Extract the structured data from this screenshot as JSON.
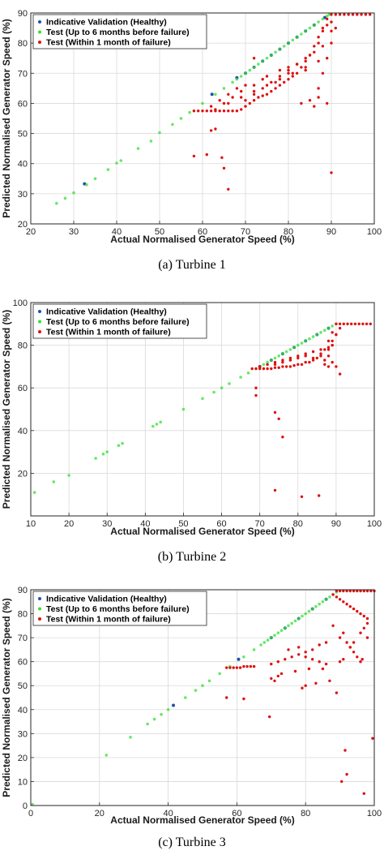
{
  "chart_data": [
    {
      "type": "scatter",
      "xlabel": "Actual Normalised Generator Speed (%)",
      "ylabel": "Predicted Normalised Generator Speed (%)",
      "xlim": [
        20,
        100
      ],
      "ylim": [
        20,
        90
      ],
      "xticks": [
        "20",
        "30",
        "40",
        "50",
        "60",
        "70",
        "80",
        "90",
        "100"
      ],
      "yticks": [
        "20",
        "30",
        "40",
        "50",
        "60",
        "70",
        "80",
        "90"
      ],
      "grid": true,
      "legend_position": "top-left",
      "legend": [
        "Indicative Validation (Healthy)",
        "Test (Up to 6 months before failure)",
        "Test (Within 1 month of failure)"
      ],
      "colors": {
        "validation": "#1f4fb0",
        "test6": "#33e033",
        "test1": "#e01010"
      },
      "series": [
        {
          "name": "Indicative Validation (Healthy)",
          "x": [
            32.5,
            62.2,
            68,
            70,
            72,
            74,
            76,
            78,
            80,
            82,
            84,
            86,
            88.5
          ],
          "y": [
            33.3,
            63,
            68.5,
            70,
            72,
            74,
            76,
            78,
            80,
            82,
            84,
            86,
            88.5
          ]
        },
        {
          "name": "Test (Up to 6 months before failure)",
          "x": [
            26,
            28,
            30,
            33,
            35,
            38,
            40,
            41,
            45,
            48,
            50,
            53,
            55,
            57,
            60,
            63,
            65,
            67,
            68,
            69,
            70,
            71,
            72,
            73,
            74,
            75,
            76,
            77,
            78,
            79,
            80,
            81,
            82,
            83,
            84,
            85,
            86,
            87,
            88,
            89,
            89.5
          ],
          "y": [
            26.8,
            28.5,
            30.3,
            33,
            35,
            38,
            40.2,
            41,
            45,
            47.5,
            50.3,
            53,
            55,
            57,
            60,
            63,
            65,
            67,
            68,
            69,
            70,
            71,
            72,
            73,
            74,
            75,
            76,
            77,
            78,
            79,
            80,
            81,
            82,
            83,
            84,
            85,
            86,
            87,
            88,
            89,
            89.5
          ]
        },
        {
          "name": "Test (Within 1 month of failure)",
          "x": [
            58,
            59,
            60,
            61,
            62,
            63,
            64,
            65,
            66,
            67,
            68,
            69,
            70,
            71,
            72,
            73,
            74,
            75,
            76,
            77,
            78,
            79,
            80,
            81,
            82,
            83,
            84,
            85,
            86,
            87,
            88,
            89,
            90,
            91,
            92,
            93,
            94,
            95,
            96,
            97,
            98,
            99,
            65,
            67,
            69,
            70,
            72,
            74,
            75,
            77,
            78,
            80,
            82,
            84,
            85,
            87,
            88,
            89,
            90,
            62,
            64,
            66,
            68,
            70,
            72,
            74,
            76,
            78,
            80,
            82,
            84,
            86,
            88,
            90,
            63,
            66,
            69,
            72,
            75,
            78,
            81,
            84,
            87,
            86,
            87,
            88,
            89,
            90,
            91,
            89,
            87,
            85,
            83,
            58,
            61,
            63,
            64.5,
            65,
            66,
            90,
            62,
            80,
            72
          ],
          "y": [
            57.5,
            57.5,
            57.5,
            57.5,
            57.5,
            57.5,
            57.5,
            57.5,
            57.5,
            57.5,
            57.5,
            58,
            59,
            60,
            61,
            62,
            62.5,
            63,
            64,
            65,
            66,
            67,
            68,
            69,
            70,
            72,
            74,
            76,
            79,
            82,
            85,
            88,
            89.5,
            89.5,
            89.5,
            89.5,
            89.5,
            89.5,
            89.5,
            89.5,
            89.5,
            89.5,
            60,
            62,
            64,
            66,
            66,
            68,
            69,
            67,
            71,
            70,
            73,
            71,
            76,
            80,
            84,
            86,
            87,
            59,
            61,
            63,
            65,
            61,
            63,
            65,
            67,
            69,
            71,
            73,
            75,
            77,
            79,
            84,
            58,
            60,
            62,
            64,
            66,
            68,
            70,
            72,
            74,
            59,
            65,
            70,
            75,
            80,
            85,
            60,
            62,
            61,
            60,
            42.5,
            43,
            51.5,
            42,
            38.5,
            31.5,
            37,
            51,
            72,
            75
          ]
        }
      ]
    },
    {
      "type": "scatter",
      "xlabel": "Actual Normalised Generator Speed (%)",
      "ylabel": "Predicted Normalised Generator Speed (%)",
      "xlim": [
        10,
        100
      ],
      "ylim": [
        0,
        100
      ],
      "xticks": [
        "10",
        "20",
        "30",
        "40",
        "50",
        "60",
        "70",
        "80",
        "90",
        "100"
      ],
      "yticks": [
        "20",
        "40",
        "60",
        "80",
        "100"
      ],
      "grid": true,
      "legend_position": "top-left",
      "legend": [
        "Indicative Validation (Healthy)",
        "Test (Up to 6 months before failure)",
        "Test (Within 1 month of failure)"
      ],
      "colors": {
        "validation": "#1f4fb0",
        "test6": "#33e033",
        "test1": "#e01010"
      },
      "series": [
        {
          "name": "Indicative Validation (Healthy)",
          "x": [
            70,
            73,
            76,
            79,
            82,
            85,
            88
          ],
          "y": [
            70,
            73,
            76,
            79,
            82,
            85,
            88
          ]
        },
        {
          "name": "Test (Up to 6 months before failure)",
          "x": [
            11,
            16,
            20,
            27,
            29,
            30,
            33,
            34,
            42,
            43,
            44,
            50,
            55,
            58,
            60,
            62,
            65,
            67,
            69,
            70,
            71,
            72,
            73,
            74,
            75,
            76,
            77,
            78,
            79,
            80,
            81,
            82,
            83,
            84,
            85,
            86,
            87,
            88,
            89,
            90
          ],
          "y": [
            11,
            16,
            19,
            27,
            29,
            30,
            33,
            34,
            42,
            43,
            44,
            50,
            55,
            58,
            60,
            62,
            65,
            67,
            69,
            70,
            71,
            72,
            73,
            74,
            75,
            76,
            77,
            78,
            79,
            80,
            81,
            82,
            83,
            84,
            85,
            86,
            87,
            88,
            89,
            90
          ]
        },
        {
          "name": "Test (Within 1 month of failure)",
          "x": [
            68,
            69,
            70,
            71,
            72,
            73,
            74,
            75,
            76,
            77,
            78,
            79,
            80,
            81,
            82,
            83,
            84,
            85,
            86,
            87,
            88,
            89,
            90,
            91,
            92,
            93,
            94,
            95,
            96,
            97,
            98,
            99,
            70,
            72,
            74,
            76,
            78,
            80,
            82,
            84,
            86,
            88,
            89,
            90,
            74,
            76,
            78,
            80,
            82,
            84,
            86,
            88,
            89,
            87,
            88,
            89,
            90,
            91,
            90,
            89,
            87,
            69,
            69,
            74,
            75,
            76,
            74,
            81,
            85.5,
            91,
            88
          ],
          "y": [
            69,
            69,
            69,
            69,
            69,
            69,
            69.5,
            69.5,
            70,
            70,
            70,
            70.5,
            71,
            71,
            72,
            72,
            73,
            74,
            75,
            78,
            82,
            86,
            90,
            90,
            90,
            90,
            90,
            90,
            90,
            90,
            90,
            90,
            70,
            71,
            72,
            72,
            73,
            74,
            75,
            74,
            76,
            78,
            80,
            85,
            71,
            73,
            74,
            75,
            76,
            77,
            78,
            79,
            82,
            71,
            75,
            80,
            85,
            88,
            70,
            72,
            73,
            60,
            56.5,
            48.5,
            45.5,
            37,
            12,
            9,
            9.5,
            66.5,
            70
          ]
        }
      ]
    },
    {
      "type": "scatter",
      "xlabel": "Actual Normalised Generator Speed (%)",
      "ylabel": "Predicted Normalised Generator Speed (%)",
      "xlim": [
        0,
        100
      ],
      "ylim": [
        0,
        90
      ],
      "xticks": [
        "0",
        "20",
        "40",
        "60",
        "80",
        "100"
      ],
      "yticks": [
        "0",
        "10",
        "20",
        "30",
        "40",
        "50",
        "60",
        "70",
        "80",
        "90"
      ],
      "grid": true,
      "legend_position": "top-left",
      "legend": [
        "Indicative Validation (Healthy)",
        "Test (Up to 6 months before failure)",
        "Test (Within 1 month of failure)"
      ],
      "colors": {
        "validation": "#1f4fb0",
        "test6": "#33e033",
        "test1": "#e01010"
      },
      "series": [
        {
          "name": "Indicative Validation (Healthy)",
          "x": [
            41.5,
            60.5,
            70,
            74,
            78,
            82,
            86
          ],
          "y": [
            41.8,
            61,
            70,
            74,
            78,
            82,
            86
          ]
        },
        {
          "name": "Test (Up to 6 months before failure)",
          "x": [
            0.5,
            22,
            29,
            34,
            36,
            38,
            40,
            45,
            48,
            50,
            52,
            55,
            58,
            62,
            65,
            67,
            68,
            69,
            70,
            71,
            72,
            73,
            74,
            75,
            76,
            77,
            78,
            79,
            80,
            81,
            82,
            83,
            84,
            85,
            86,
            87,
            88,
            89
          ],
          "y": [
            0.5,
            21,
            28.5,
            34,
            36,
            38,
            40,
            45,
            48,
            50,
            52,
            55,
            58,
            62,
            65,
            67,
            68,
            69,
            70,
            71,
            72,
            73,
            74,
            75,
            76,
            77,
            78,
            79,
            80,
            81,
            82,
            83,
            84,
            85,
            86,
            87,
            88,
            89
          ]
        },
        {
          "name": "Test (Within 1 month of failure)",
          "x": [
            89,
            90,
            91,
            92,
            93,
            94,
            95,
            96,
            97,
            98,
            99,
            100,
            88,
            89,
            90,
            91,
            92,
            93,
            94,
            95,
            96,
            97,
            98,
            88,
            90,
            91,
            92,
            93,
            94,
            95,
            96,
            97,
            98,
            57,
            58,
            59,
            60,
            61,
            62,
            63,
            64,
            65,
            70,
            72,
            74,
            76,
            78,
            80,
            82,
            84,
            86,
            75,
            78,
            80,
            82,
            84,
            86,
            73,
            77,
            81,
            85,
            70,
            71,
            72,
            79,
            80,
            83,
            87,
            90,
            91,
            93,
            94,
            96,
            98,
            57,
            62,
            69.5,
            89,
            90.5,
            91.5,
            92,
            96.5,
            97,
            99.5
          ],
          "y": [
            89.5,
            89.5,
            89.5,
            89.5,
            89.5,
            89.5,
            89.5,
            89.5,
            89.5,
            89.5,
            89.5,
            89.5,
            88,
            87,
            86,
            85,
            84,
            83,
            82,
            81,
            80,
            79,
            78,
            75,
            70,
            72,
            68,
            66,
            64,
            62,
            60,
            74,
            70,
            57.5,
            57.5,
            57.5,
            57.5,
            57.5,
            58,
            58,
            58,
            58,
            59,
            60,
            61,
            62,
            63,
            62,
            61,
            60,
            59,
            65,
            66,
            64,
            65,
            67,
            68,
            55,
            56,
            57,
            57,
            53,
            52,
            54,
            49,
            50,
            51,
            52,
            60,
            61,
            66,
            68,
            72,
            76,
            45,
            44.5,
            37,
            47,
            10,
            23,
            13,
            61,
            5,
            28
          ]
        }
      ]
    }
  ],
  "captions": [
    "(a) Turbine 1",
    "(b) Turbine 2",
    "(c) Turbine 3"
  ]
}
